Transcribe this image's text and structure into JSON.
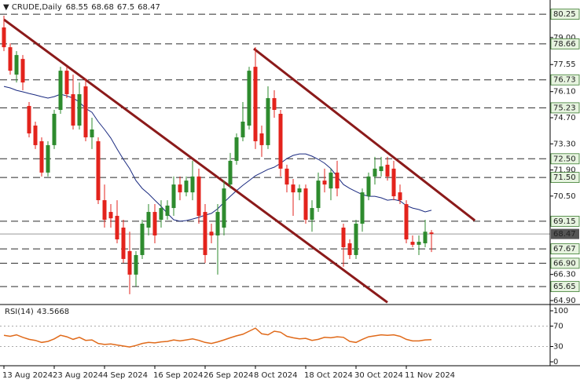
{
  "chart_data": {
    "type": "candlestick",
    "symbol": "CRUDE,Daily",
    "categories": [
      "13 Aug 2024",
      null,
      null,
      null,
      null,
      null,
      null,
      null,
      "23 Aug 2024",
      null,
      null,
      null,
      null,
      null,
      null,
      null,
      "4 Sep 2024",
      null,
      null,
      null,
      null,
      null,
      null,
      null,
      "16 Sep 2024",
      null,
      null,
      null,
      null,
      null,
      null,
      null,
      "26 Sep 2024",
      null,
      null,
      null,
      null,
      null,
      null,
      null,
      "8 Oct 2024",
      null,
      null,
      null,
      null,
      null,
      null,
      null,
      "18 Oct 2024",
      null,
      null,
      null,
      null,
      null,
      null,
      null,
      "30 Oct 2024",
      null,
      null,
      null,
      null,
      null,
      null,
      null,
      "11 Nov 2024",
      null,
      null,
      null,
      null
    ],
    "open": [
      79.54,
      78.48,
      77.01,
      77.85,
      75.33,
      74.28,
      73.44,
      71.76,
      73.23,
      75.12,
      77.22,
      75.96,
      74.28,
      76.38,
      73.65,
      73.44,
      70.28,
      69.65,
      69.44,
      68.81,
      67.55,
      66.29,
      67.34,
      68.81,
      69.65,
      69.23,
      69.44,
      69.86,
      71.12,
      70.7,
      70.7,
      71.55,
      69.65,
      68.59,
      68.39,
      68.81,
      71.12,
      72.39,
      73.65,
      74.28,
      77.43,
      73.86,
      73.23,
      75.75,
      74.91,
      71.97,
      71.12,
      70.7,
      70.91,
      69.23,
      69.86,
      71.33,
      70.91,
      71.76,
      68.81,
      67.97,
      67.34,
      69.02,
      70.49,
      71.55,
      71.84,
      72.18,
      71.97,
      70.7,
      70.07,
      68.05,
      67.89,
      67.97,
      68.55
    ],
    "high": [
      80.17,
      78.69,
      78.27,
      78.06,
      75.54,
      74.49,
      73.65,
      73.44,
      75.12,
      77.43,
      77.43,
      77.01,
      76.59,
      76.8,
      74.7,
      73.65,
      71.12,
      70.07,
      70.28,
      69.23,
      68.59,
      67.55,
      69.23,
      70.07,
      70.07,
      70.28,
      70.28,
      71.55,
      71.55,
      71.55,
      72.39,
      71.97,
      70.07,
      69.02,
      70.07,
      71.33,
      72.81,
      73.86,
      75.54,
      77.43,
      78.48,
      74.28,
      76.38,
      76.17,
      75.12,
      72.18,
      71.42,
      71.12,
      71.12,
      70.28,
      71.76,
      71.97,
      71.97,
      72.39,
      69.02,
      68.18,
      69.23,
      70.91,
      71.76,
      72.6,
      72.6,
      72.6,
      72.39,
      71.12,
      70.28,
      68.39,
      68.39,
      69.23,
      68.68
    ],
    "low": [
      78.27,
      77.01,
      76.59,
      76.17,
      73.65,
      73.02,
      71.55,
      71.55,
      73.02,
      74.91,
      75.75,
      74.07,
      74.07,
      73.44,
      73.02,
      70.07,
      68.81,
      68.81,
      67.97,
      66.92,
      65.24,
      65.66,
      67.13,
      68.39,
      67.97,
      68.81,
      69.23,
      69.44,
      70.28,
      70.49,
      70.28,
      69.02,
      66.92,
      67.97,
      66.29,
      68.39,
      70.91,
      72.18,
      73.44,
      74.07,
      73.02,
      72.6,
      73.02,
      74.7,
      71.55,
      70.7,
      69.44,
      70.28,
      69.02,
      68.59,
      69.65,
      70.7,
      70.28,
      70.49,
      66.71,
      67.13,
      67.13,
      68.59,
      70.28,
      71.12,
      71.55,
      71.33,
      70.28,
      70.07,
      67.97,
      67.76,
      67.34,
      67.76,
      67.5
    ],
    "close": [
      78.48,
      77.22,
      78.06,
      76.59,
      73.86,
      73.23,
      71.76,
      73.23,
      74.91,
      77.22,
      75.96,
      74.28,
      75.96,
      73.65,
      74.07,
      70.28,
      69.23,
      69.31,
      68.18,
      67.13,
      66.29,
      67.34,
      69.02,
      69.65,
      68.39,
      69.86,
      69.99,
      71.12,
      70.7,
      71.33,
      71.55,
      69.44,
      67.34,
      68.39,
      69.65,
      70.91,
      72.39,
      73.65,
      74.49,
      77.22,
      73.44,
      73.23,
      75.75,
      75.12,
      71.97,
      71.12,
      70.7,
      70.91,
      69.23,
      69.86,
      71.33,
      71.12,
      71.76,
      70.91,
      67.76,
      67.34,
      69.02,
      70.7,
      71.55,
      71.97,
      72.09,
      71.55,
      70.49,
      70.28,
      68.18,
      67.89,
      68.05,
      68.59,
      68.47
    ],
    "up_color": "#2e8b2e",
    "down_color": "#e3231c",
    "ma": {
      "color": "#1a2a80",
      "values": [
        76.38,
        76.3,
        76.17,
        76.09,
        76.0,
        75.92,
        75.83,
        75.75,
        75.83,
        75.96,
        75.87,
        75.75,
        75.54,
        75.2,
        74.99,
        74.49,
        74.07,
        73.61,
        73.02,
        72.47,
        71.97,
        71.33,
        70.91,
        70.62,
        70.28,
        69.95,
        69.57,
        69.23,
        69.15,
        69.19,
        69.27,
        69.36,
        69.48,
        69.57,
        69.82,
        70.16,
        70.49,
        70.79,
        71.08,
        71.33,
        71.59,
        71.76,
        71.93,
        72.05,
        72.26,
        72.51,
        72.68,
        72.76,
        72.76,
        72.64,
        72.47,
        72.26,
        71.97,
        71.55,
        71.12,
        70.91,
        70.74,
        70.58,
        70.49,
        70.49,
        70.41,
        70.28,
        70.32,
        70.24,
        69.99,
        69.86,
        69.78,
        69.65,
        69.74
      ]
    },
    "xlim": [
      -0.625,
      86.875
    ],
    "ylim": [
      64.73,
      81.01
    ],
    "yticks": [
      {
        "value": 64.9,
        "label": "64.90"
      },
      {
        "value": 66.3,
        "label": "66.30"
      },
      {
        "value": 70.5,
        "label": "70.50"
      },
      {
        "value": 71.9,
        "label": "71.90"
      },
      {
        "value": 73.3,
        "label": "73.30"
      },
      {
        "value": 74.7,
        "label": "74.70"
      },
      {
        "value": 76.1,
        "label": "76.10"
      },
      77.55,
      {
        "value": 79,
        "label": "79.00"
      }
    ],
    "levels": [
      80.25,
      78.66,
      76.73,
      75.23,
      {
        "value": 72.5,
        "label": "72.50"
      },
      {
        "value": 71.5,
        "label": "71.50"
      },
      69.15,
      67.67,
      {
        "value": 66.9,
        "label": "66.90"
      },
      65.65
    ],
    "level_color": "#2b2b2b",
    "trendlines": [
      {
        "x": [
          0,
          61
        ],
        "y": [
          79.96,
          64.8
        ]
      },
      {
        "x": [
          39.75,
          74.9
        ],
        "y": [
          78.4,
          69.19
        ]
      }
    ],
    "trendline_color": "#8b1a1a",
    "rsi": {
      "title": "RSI(14)",
      "color": "#e06a1a",
      "values": [
        52,
        50,
        53,
        48,
        44,
        42,
        38,
        40,
        45,
        52,
        49,
        44,
        48,
        42,
        43,
        36,
        34,
        35,
        33,
        31,
        29,
        32,
        36,
        38,
        37,
        39,
        40,
        43,
        41,
        43,
        45,
        42,
        38,
        36,
        39,
        43,
        47,
        51,
        54,
        60,
        66,
        55,
        53,
        60,
        58,
        50,
        47,
        45,
        46,
        42,
        44,
        48,
        47,
        49,
        48,
        40,
        38,
        44,
        49,
        51,
        53,
        52,
        53,
        50,
        44,
        41,
        41,
        43,
        43.5668
      ],
      "ylim": [
        0,
        100
      ],
      "yticks": [
        100,
        70,
        30,
        0
      ]
    }
  }
}
